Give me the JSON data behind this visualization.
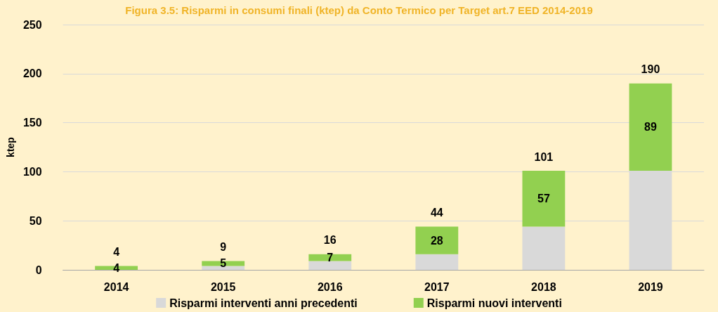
{
  "chart_data": {
    "type": "bar",
    "stacked": true,
    "title": "Figura 3.5: Risparmi in consumi finali (ktep) da Conto Termico per Target art.7 EED 2014-2019",
    "ylabel": "ktep",
    "categories": [
      "2014",
      "2015",
      "2016",
      "2017",
      "2018",
      "2019"
    ],
    "series": [
      {
        "name": "Risparmi interventi anni precedenti",
        "color": "#d9d9d9",
        "values": [
          0,
          4,
          9,
          16,
          44,
          101
        ]
      },
      {
        "name": "Risparmi nuovi interventi",
        "color": "#92d050",
        "values": [
          4,
          5,
          7,
          28,
          57,
          89
        ],
        "value_labels": [
          "4",
          "5",
          "7",
          "28",
          "57",
          "89"
        ]
      }
    ],
    "totals": [
      "4",
      "9",
      "16",
      "44",
      "101",
      "190"
    ],
    "ylim": [
      0,
      250
    ],
    "yticks": [
      0,
      50,
      100,
      150,
      200,
      250
    ],
    "grid": "y",
    "legend": "bottom"
  }
}
